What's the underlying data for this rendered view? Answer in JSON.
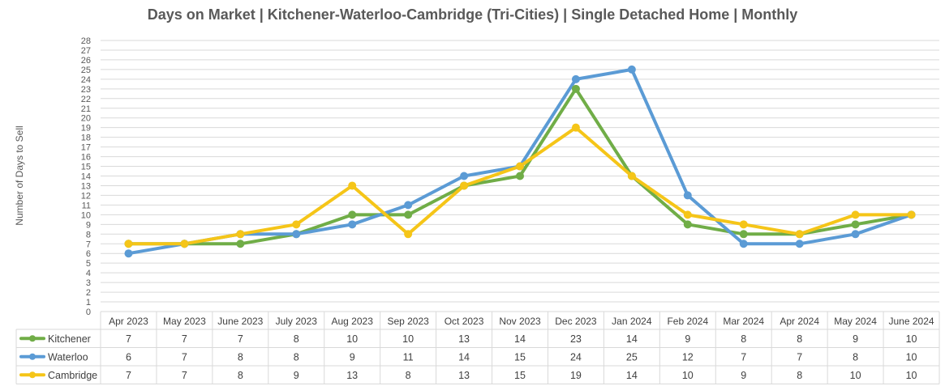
{
  "chart_data": {
    "type": "line",
    "title": "Days on Market | Kitchener-Waterloo-Cambridge (Tri-Cities) | Single Detached Home | Monthly",
    "xlabel": "",
    "ylabel": "Number of Days to Sell",
    "ylim": [
      0,
      28
    ],
    "yticks": [
      0,
      1,
      2,
      3,
      4,
      5,
      6,
      7,
      8,
      9,
      10,
      11,
      12,
      13,
      14,
      15,
      16,
      17,
      18,
      19,
      20,
      21,
      22,
      23,
      24,
      25,
      26,
      27,
      28
    ],
    "grid": true,
    "legend": "data-table-left",
    "categories": [
      "Apr 2023",
      "May 2023",
      "June 2023",
      "July 2023",
      "Aug 2023",
      "Sep 2023",
      "Oct 2023",
      "Nov 2023",
      "Dec 2023",
      "Jan 2024",
      "Feb 2024",
      "Mar 2024",
      "Apr 2024",
      "May 2024",
      "June 2024"
    ],
    "series": [
      {
        "name": "Kitchener",
        "color": "#70ad47",
        "values": [
          7,
          7,
          7,
          8,
          10,
          10,
          13,
          14,
          23,
          14,
          9,
          8,
          8,
          9,
          10
        ]
      },
      {
        "name": "Waterloo",
        "color": "#5b9bd5",
        "values": [
          6,
          7,
          8,
          8,
          9,
          11,
          14,
          15,
          24,
          25,
          12,
          7,
          7,
          8,
          10
        ]
      },
      {
        "name": "Cambridge",
        "color": "#f5c518",
        "values": [
          7,
          7,
          8,
          9,
          13,
          8,
          13,
          15,
          19,
          14,
          10,
          9,
          8,
          10,
          10
        ]
      }
    ]
  }
}
